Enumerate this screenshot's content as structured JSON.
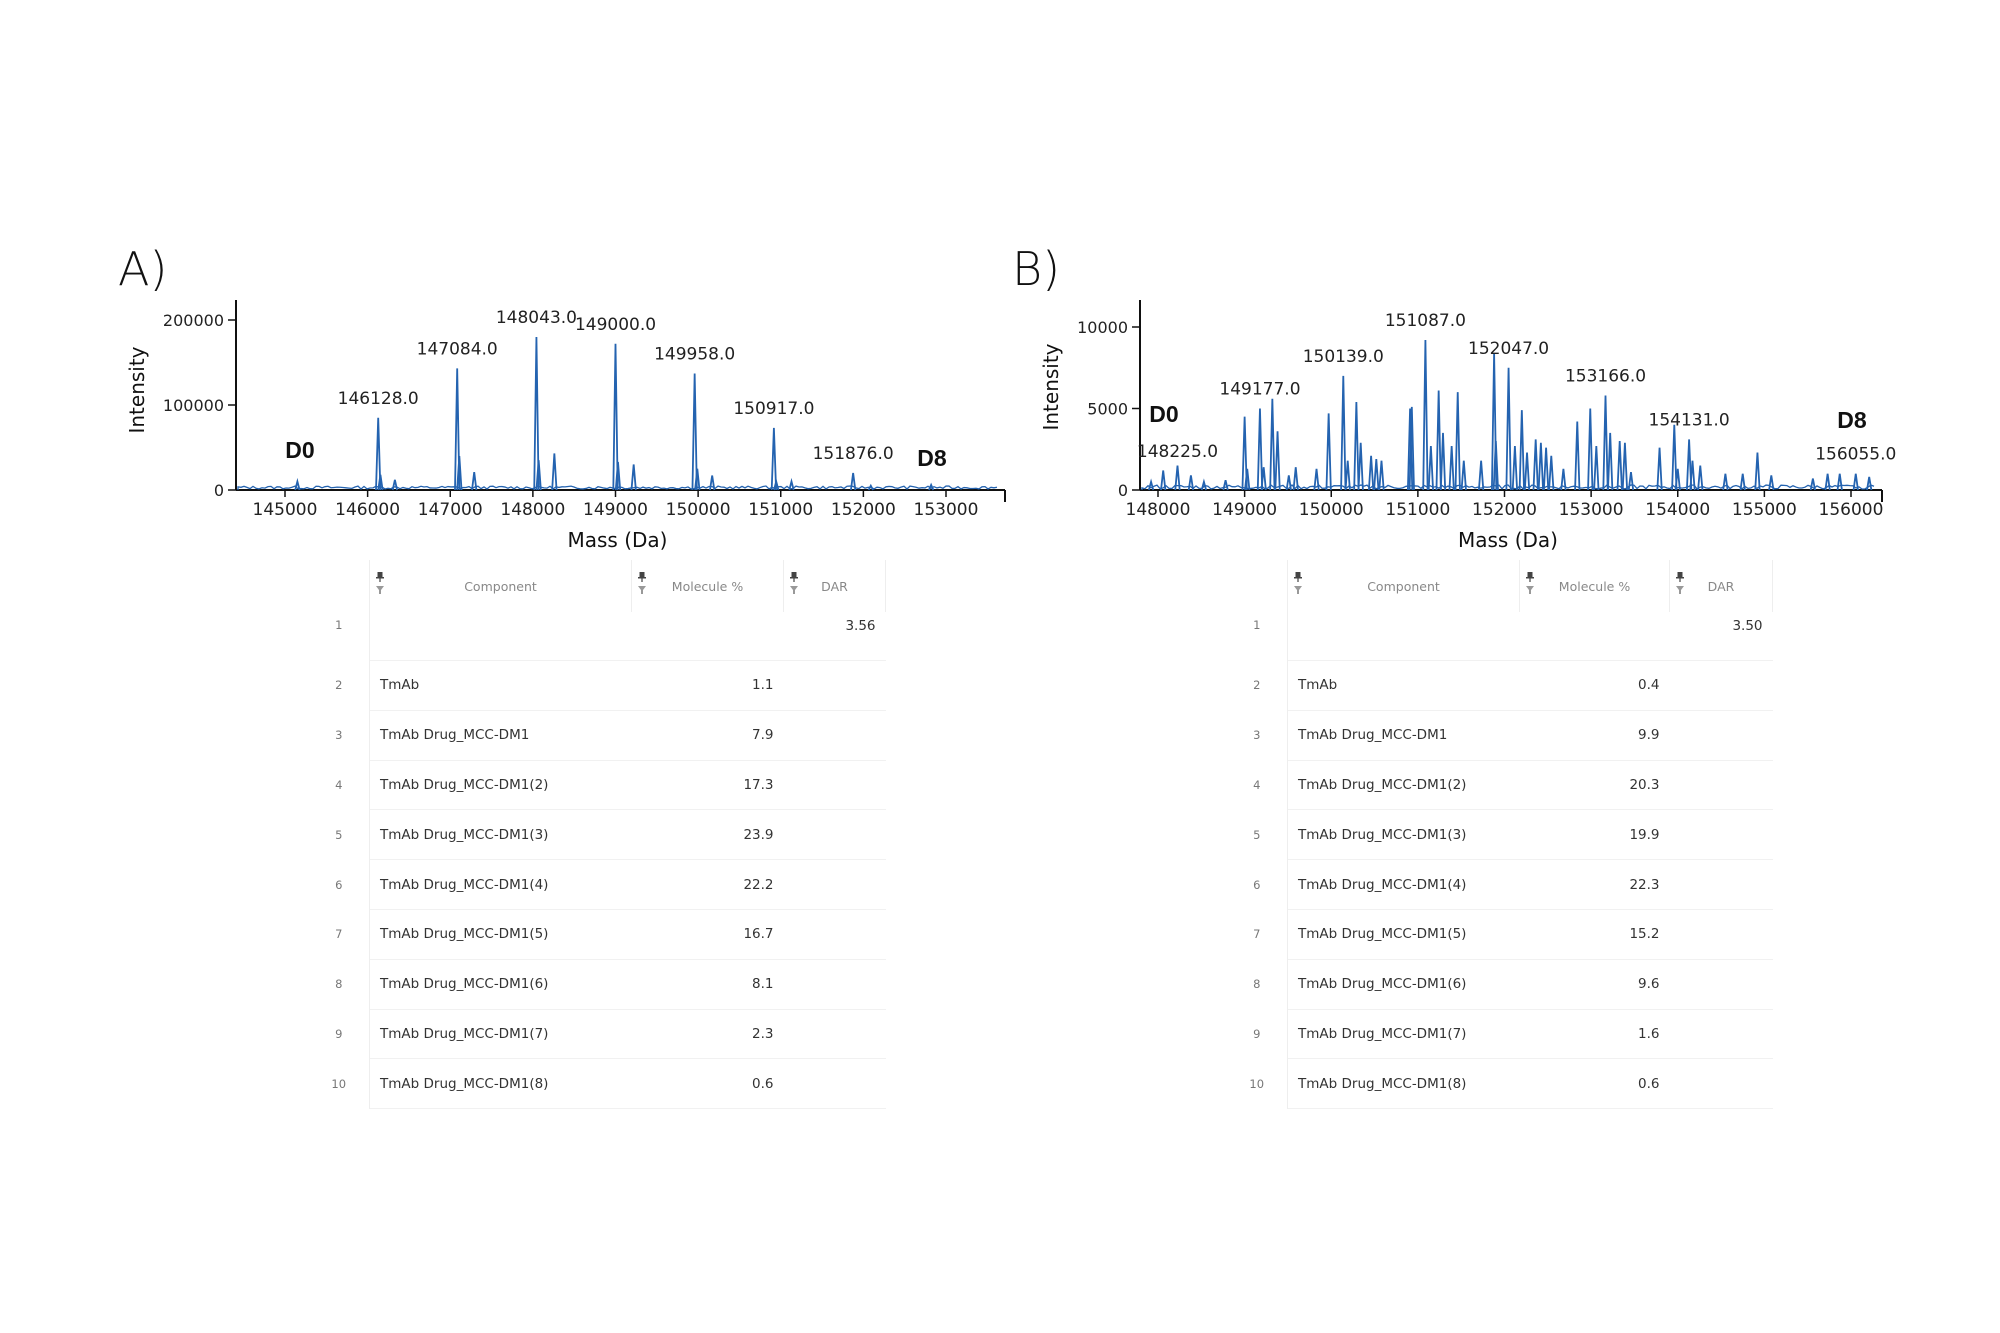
{
  "panels": [
    {
      "label": "A)",
      "chart_data": {
        "type": "line",
        "xlabel": "Mass (Da)",
        "ylabel": "Intensity",
        "xlim": [
          144800,
          153700
        ],
        "ylim": [
          0,
          225000
        ],
        "xticks": [
          145000,
          146000,
          147000,
          148000,
          149000,
          150000,
          151000,
          152000,
          153000
        ],
        "yticks": [
          0,
          100000,
          200000
        ],
        "grid": false,
        "color": "#2463b0",
        "annotations": [
          {
            "text": "D0",
            "x": 145200
          },
          {
            "text": "D8",
            "x": 152800
          }
        ],
        "peaks": [
          {
            "x": 145150,
            "y": 10000
          },
          {
            "x": 146128,
            "y": 85000,
            "label": "146128.0"
          },
          {
            "x": 146155,
            "y": 18000
          },
          {
            "x": 146330,
            "y": 12000
          },
          {
            "x": 147084,
            "y": 143000,
            "label": "147084.0"
          },
          {
            "x": 147110,
            "y": 40000
          },
          {
            "x": 147290,
            "y": 21000
          },
          {
            "x": 148043,
            "y": 180000,
            "label": "148043.0"
          },
          {
            "x": 148070,
            "y": 35000
          },
          {
            "x": 148260,
            "y": 43000
          },
          {
            "x": 149000,
            "y": 172000,
            "label": "149000.0"
          },
          {
            "x": 149030,
            "y": 33000
          },
          {
            "x": 149220,
            "y": 30000
          },
          {
            "x": 149958,
            "y": 137000,
            "label": "149958.0"
          },
          {
            "x": 149990,
            "y": 25000
          },
          {
            "x": 150170,
            "y": 17000
          },
          {
            "x": 150917,
            "y": 73000,
            "label": "150917.0"
          },
          {
            "x": 150945,
            "y": 10000
          },
          {
            "x": 151130,
            "y": 10000
          },
          {
            "x": 151876,
            "y": 20000,
            "label": "151876.0"
          },
          {
            "x": 152090,
            "y": 5000
          },
          {
            "x": 152820,
            "y": 6000
          }
        ]
      },
      "table": {
        "columns": [
          "Component",
          "Molecule %",
          "DAR"
        ],
        "rows": [
          {
            "index": "1",
            "component": "",
            "molecule_pct": "",
            "dar": "3.56"
          },
          {
            "index": "2",
            "component": "TmAb",
            "molecule_pct": "1.1",
            "dar": ""
          },
          {
            "index": "3",
            "component": "TmAb Drug_MCC-DM1",
            "molecule_pct": "7.9",
            "dar": ""
          },
          {
            "index": "4",
            "component": "TmAb Drug_MCC-DM1(2)",
            "molecule_pct": "17.3",
            "dar": ""
          },
          {
            "index": "5",
            "component": "TmAb Drug_MCC-DM1(3)",
            "molecule_pct": "23.9",
            "dar": ""
          },
          {
            "index": "6",
            "component": "TmAb Drug_MCC-DM1(4)",
            "molecule_pct": "22.2",
            "dar": ""
          },
          {
            "index": "7",
            "component": "TmAb Drug_MCC-DM1(5)",
            "molecule_pct": "16.7",
            "dar": ""
          },
          {
            "index": "8",
            "component": "TmAb Drug_MCC-DM1(6)",
            "molecule_pct": "8.1",
            "dar": ""
          },
          {
            "index": "9",
            "component": "TmAb Drug_MCC-DM1(7)",
            "molecule_pct": "2.3",
            "dar": ""
          },
          {
            "index": "10",
            "component": "TmAb Drug_MCC-DM1(8)",
            "molecule_pct": "0.6",
            "dar": ""
          }
        ]
      }
    },
    {
      "label": "B)",
      "chart_data": {
        "type": "line",
        "xlabel": "Mass (Da)",
        "ylabel": "Intensity",
        "xlim": [
          147800,
          156400
        ],
        "ylim": [
          0,
          11800
        ],
        "xticks": [
          148000,
          149000,
          150000,
          151000,
          152000,
          153000,
          154000,
          155000,
          156000
        ],
        "yticks": [
          0,
          5000,
          10000
        ],
        "grid": false,
        "color": "#2463b0",
        "annotations": [
          {
            "text": "D0",
            "x": 148080
          },
          {
            "text": "D8",
            "x": 155900
          }
        ],
        "peaks": [
          {
            "x": 147920,
            "y": 500
          },
          {
            "x": 148060,
            "y": 1200
          },
          {
            "x": 148225,
            "y": 1500,
            "label": "148225.0"
          },
          {
            "x": 148380,
            "y": 900
          },
          {
            "x": 148530,
            "y": 500
          },
          {
            "x": 148780,
            "y": 600
          },
          {
            "x": 149000,
            "y": 4500
          },
          {
            "x": 149030,
            "y": 1300
          },
          {
            "x": 149177,
            "y": 5000,
            "label": "149177.0"
          },
          {
            "x": 149220,
            "y": 1400
          },
          {
            "x": 149320,
            "y": 5600
          },
          {
            "x": 149380,
            "y": 3600
          },
          {
            "x": 149510,
            "y": 900
          },
          {
            "x": 149590,
            "y": 1400
          },
          {
            "x": 149830,
            "y": 1300
          },
          {
            "x": 149970,
            "y": 4700
          },
          {
            "x": 150139,
            "y": 7000,
            "label": "150139.0"
          },
          {
            "x": 150190,
            "y": 1800
          },
          {
            "x": 150290,
            "y": 5400
          },
          {
            "x": 150340,
            "y": 2900
          },
          {
            "x": 150460,
            "y": 2100
          },
          {
            "x": 150520,
            "y": 1900
          },
          {
            "x": 150580,
            "y": 1800
          },
          {
            "x": 150910,
            "y": 5000
          },
          {
            "x": 150930,
            "y": 5100
          },
          {
            "x": 151087,
            "y": 9200,
            "label": "151087.0"
          },
          {
            "x": 151150,
            "y": 2700
          },
          {
            "x": 151240,
            "y": 6100
          },
          {
            "x": 151290,
            "y": 3500
          },
          {
            "x": 151390,
            "y": 2700
          },
          {
            "x": 151460,
            "y": 6000
          },
          {
            "x": 151530,
            "y": 1800
          },
          {
            "x": 151730,
            "y": 1800
          },
          {
            "x": 151880,
            "y": 8400
          },
          {
            "x": 151900,
            "y": 3000
          },
          {
            "x": 152047,
            "y": 7500,
            "label": "152047.0"
          },
          {
            "x": 152120,
            "y": 2700
          },
          {
            "x": 152200,
            "y": 4900
          },
          {
            "x": 152260,
            "y": 2300
          },
          {
            "x": 152360,
            "y": 3100
          },
          {
            "x": 152420,
            "y": 2900
          },
          {
            "x": 152480,
            "y": 2600
          },
          {
            "x": 152540,
            "y": 2100
          },
          {
            "x": 152680,
            "y": 1300
          },
          {
            "x": 152840,
            "y": 4200
          },
          {
            "x": 152990,
            "y": 5000
          },
          {
            "x": 153060,
            "y": 2700
          },
          {
            "x": 153166,
            "y": 5800,
            "label": "153166.0"
          },
          {
            "x": 153220,
            "y": 3500
          },
          {
            "x": 153330,
            "y": 3000
          },
          {
            "x": 153390,
            "y": 2900
          },
          {
            "x": 153460,
            "y": 1100
          },
          {
            "x": 153790,
            "y": 2600
          },
          {
            "x": 153960,
            "y": 4000
          },
          {
            "x": 154000,
            "y": 1300
          },
          {
            "x": 154131,
            "y": 3100,
            "label": "154131.0"
          },
          {
            "x": 154170,
            "y": 1800
          },
          {
            "x": 154260,
            "y": 1500
          },
          {
            "x": 154550,
            "y": 1000
          },
          {
            "x": 154750,
            "y": 1000
          },
          {
            "x": 154920,
            "y": 2300
          },
          {
            "x": 155080,
            "y": 900
          },
          {
            "x": 155560,
            "y": 700
          },
          {
            "x": 155730,
            "y": 1000
          },
          {
            "x": 155870,
            "y": 1000
          },
          {
            "x": 156055,
            "y": 1000,
            "label": "156055.0"
          },
          {
            "x": 156210,
            "y": 800
          }
        ]
      },
      "table": {
        "columns": [
          "Component",
          "Molecule %",
          "DAR"
        ],
        "rows": [
          {
            "index": "1",
            "component": "",
            "molecule_pct": "",
            "dar": "3.50"
          },
          {
            "index": "2",
            "component": "TmAb",
            "molecule_pct": "0.4",
            "dar": ""
          },
          {
            "index": "3",
            "component": "TmAb Drug_MCC-DM1",
            "molecule_pct": "9.9",
            "dar": ""
          },
          {
            "index": "4",
            "component": "TmAb Drug_MCC-DM1(2)",
            "molecule_pct": "20.3",
            "dar": ""
          },
          {
            "index": "5",
            "component": "TmAb Drug_MCC-DM1(3)",
            "molecule_pct": "19.9",
            "dar": ""
          },
          {
            "index": "6",
            "component": "TmAb Drug_MCC-DM1(4)",
            "molecule_pct": "22.3",
            "dar": ""
          },
          {
            "index": "7",
            "component": "TmAb Drug_MCC-DM1(5)",
            "molecule_pct": "15.2",
            "dar": ""
          },
          {
            "index": "8",
            "component": "TmAb Drug_MCC-DM1(6)",
            "molecule_pct": "9.6",
            "dar": ""
          },
          {
            "index": "9",
            "component": "TmAb Drug_MCC-DM1(7)",
            "molecule_pct": "1.6",
            "dar": ""
          },
          {
            "index": "10",
            "component": "TmAb Drug_MCC-DM1(8)",
            "molecule_pct": "0.6",
            "dar": ""
          }
        ]
      }
    }
  ]
}
